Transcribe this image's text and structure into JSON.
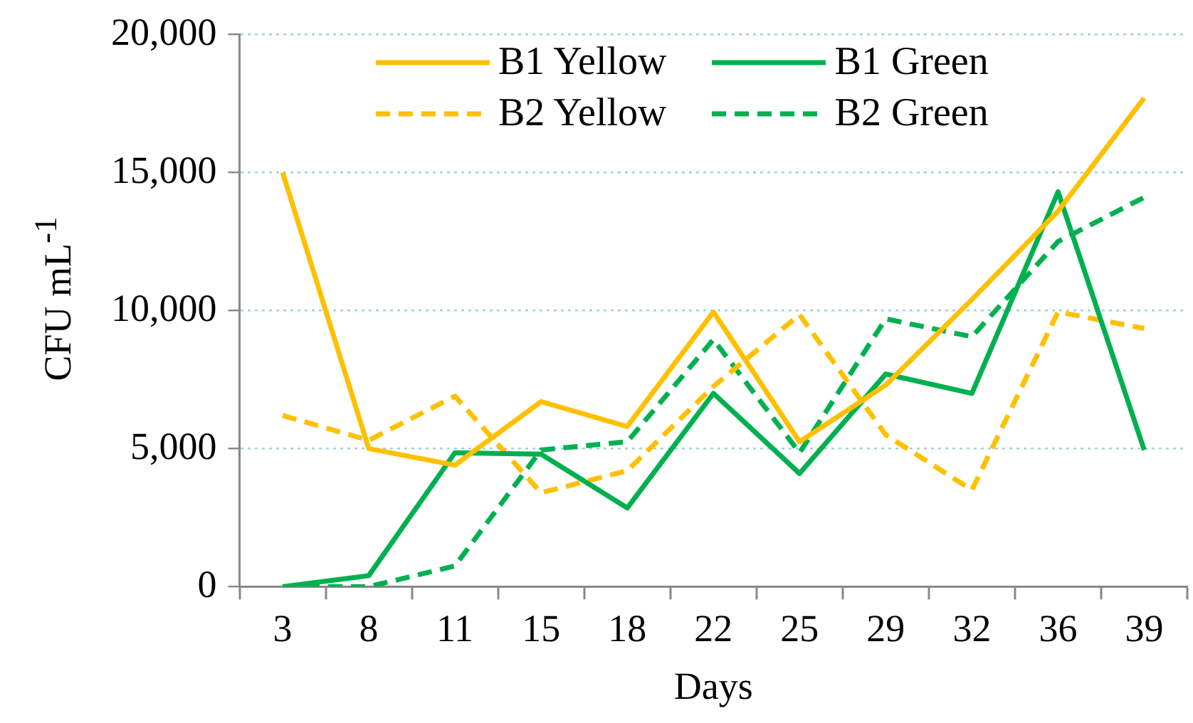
{
  "chart_data": {
    "type": "line",
    "xlabel": "Days",
    "ylabel": "CFU mL$^{-1}$",
    "categories": [
      "3",
      "8",
      "11",
      "15",
      "18",
      "22",
      "25",
      "29",
      "32",
      "36",
      "39"
    ],
    "series": [
      {
        "name": "B1 Yellow",
        "color": "#ffc000",
        "line_style": "solid",
        "values": [
          15000,
          5000,
          4400,
          6700,
          5800,
          9950,
          5250,
          7300,
          10400,
          13600,
          17700
        ]
      },
      {
        "name": "B1 Green",
        "color": "#00b050",
        "line_style": "solid",
        "values": [
          0,
          400,
          4850,
          4800,
          2850,
          7000,
          4100,
          7700,
          7000,
          14300,
          4950
        ]
      },
      {
        "name": "B2 Yellow",
        "color": "#ffc000",
        "line_style": "dashed",
        "values": [
          6200,
          5300,
          6900,
          3400,
          4200,
          7250,
          9850,
          5500,
          3500,
          9950,
          9350
        ]
      },
      {
        "name": "B2 Green",
        "color": "#00b050",
        "line_style": "dashed",
        "values": [
          0,
          0,
          750,
          4950,
          5250,
          8950,
          4850,
          9700,
          9050,
          12500,
          14100
        ]
      }
    ],
    "ylim": [
      0,
      20000
    ],
    "yticks": [
      {
        "value": 0,
        "label": "0"
      },
      {
        "value": 5000,
        "label": "5,000"
      },
      {
        "value": 10000,
        "label": "10,000"
      },
      {
        "value": 15000,
        "label": "15,000"
      },
      {
        "value": 20000,
        "label": "20,000"
      }
    ],
    "grid": "y",
    "legend": "top",
    "marker": "none"
  }
}
